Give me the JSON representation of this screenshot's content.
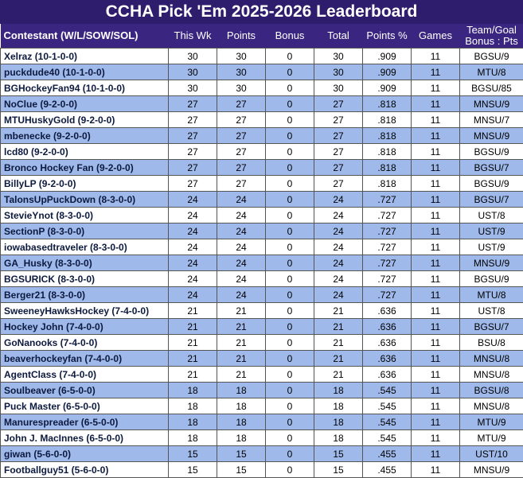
{
  "title": "CCHA Pick 'Em 2025-2026 Leaderboard",
  "table": {
    "header": [
      "Contestant (W/L/SOW/SOL)",
      "This Wk",
      "Points",
      "Bonus",
      "Total",
      "Points %",
      "Games",
      "Team/Goal\nBonus : Pts"
    ],
    "rows": [
      [
        "Xelraz (10-1-0-0)",
        30,
        30,
        0,
        30,
        ".909",
        11,
        "BGSU/9"
      ],
      [
        "puckdude40 (10-1-0-0)",
        30,
        30,
        0,
        30,
        ".909",
        11,
        "MTU/8"
      ],
      [
        "BGHockeyFan94 (10-1-0-0)",
        30,
        30,
        0,
        30,
        ".909",
        11,
        "BGSU/85"
      ],
      [
        "NoClue (9-2-0-0)",
        27,
        27,
        0,
        27,
        ".818",
        11,
        "MNSU/9"
      ],
      [
        "MTUHuskyGold (9-2-0-0)",
        27,
        27,
        0,
        27,
        ".818",
        11,
        "MNSU/7"
      ],
      [
        "mbenecke (9-2-0-0)",
        27,
        27,
        0,
        27,
        ".818",
        11,
        "MNSU/9"
      ],
      [
        "lcd80 (9-2-0-0)",
        27,
        27,
        0,
        27,
        ".818",
        11,
        "BGSU/9"
      ],
      [
        "Bronco Hockey Fan (9-2-0-0)",
        27,
        27,
        0,
        27,
        ".818",
        11,
        "BGSU/7"
      ],
      [
        "BillyLP (9-2-0-0)",
        27,
        27,
        0,
        27,
        ".818",
        11,
        "BGSU/9"
      ],
      [
        "TalonsUpPuckDown (8-3-0-0)",
        24,
        24,
        0,
        24,
        ".727",
        11,
        "BGSU/7"
      ],
      [
        "StevieYnot (8-3-0-0)",
        24,
        24,
        0,
        24,
        ".727",
        11,
        "UST/8"
      ],
      [
        "SectionP (8-3-0-0)",
        24,
        24,
        0,
        24,
        ".727",
        11,
        "UST/9"
      ],
      [
        "iowabasedtraveler (8-3-0-0)",
        24,
        24,
        0,
        24,
        ".727",
        11,
        "UST/9"
      ],
      [
        "GA_Husky (8-3-0-0)",
        24,
        24,
        0,
        24,
        ".727",
        11,
        "MNSU/9"
      ],
      [
        "BGSURICK (8-3-0-0)",
        24,
        24,
        0,
        24,
        ".727",
        11,
        "BGSU/9"
      ],
      [
        "Berger21 (8-3-0-0)",
        24,
        24,
        0,
        24,
        ".727",
        11,
        "MTU/8"
      ],
      [
        "SweeneyHawksHockey (7-4-0-0)",
        21,
        21,
        0,
        21,
        ".636",
        11,
        "UST/8"
      ],
      [
        "Hockey John (7-4-0-0)",
        21,
        21,
        0,
        21,
        ".636",
        11,
        "BGSU/7"
      ],
      [
        "GoNanooks (7-4-0-0)",
        21,
        21,
        0,
        21,
        ".636",
        11,
        "BSU/8"
      ],
      [
        "beaverhockeyfan (7-4-0-0)",
        21,
        21,
        0,
        21,
        ".636",
        11,
        "MNSU/8"
      ],
      [
        "AgentClass (7-4-0-0)",
        21,
        21,
        0,
        21,
        ".636",
        11,
        "MNSU/8"
      ],
      [
        "Soulbeaver (6-5-0-0)",
        18,
        18,
        0,
        18,
        ".545",
        11,
        "BGSU/8"
      ],
      [
        "Puck Master (6-5-0-0)",
        18,
        18,
        0,
        18,
        ".545",
        11,
        "MNSU/8"
      ],
      [
        "Manurespreader (6-5-0-0)",
        18,
        18,
        0,
        18,
        ".545",
        11,
        "MTU/9"
      ],
      [
        "John J. MacInnes (6-5-0-0)",
        18,
        18,
        0,
        18,
        ".545",
        11,
        "MTU/9"
      ],
      [
        "giwan (5-6-0-0)",
        15,
        15,
        0,
        15,
        ".455",
        11,
        "UST/10"
      ],
      [
        "Footballguy51 (5-6-0-0)",
        15,
        15,
        0,
        15,
        ".455",
        11,
        "MNSU/9"
      ]
    ]
  }
}
